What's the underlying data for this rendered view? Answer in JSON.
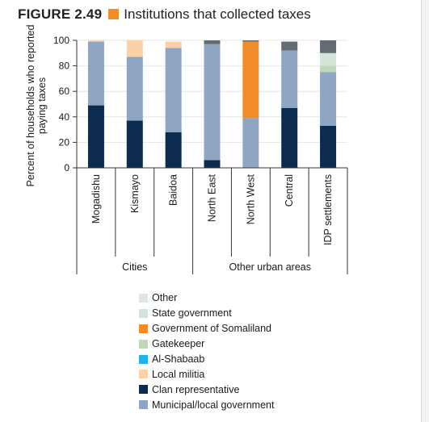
{
  "figure": {
    "number": "FIGURE 2.49",
    "title": "Institutions that collected taxes",
    "title_swatch_color": "#f28c28"
  },
  "chart_data": {
    "type": "bar",
    "stacked": true,
    "title": "Institutions that collected taxes",
    "ylabel": "Percent of households who reported paying taxes",
    "xlabel": "",
    "ylim": [
      0,
      100
    ],
    "yticks": [
      0,
      20,
      40,
      60,
      80,
      100
    ],
    "grid": false,
    "legend_position": "bottom",
    "categories": [
      "Mogadishu",
      "Kismayo",
      "Baidoa",
      "North East",
      "North West",
      "Central",
      "IDP settlements"
    ],
    "groups": [
      {
        "label": "Cities",
        "categories": [
          "Mogadishu",
          "Kismayo",
          "Baidoa"
        ]
      },
      {
        "label": "Other urban areas",
        "categories": [
          "North East",
          "North West",
          "Central",
          "IDP settlements"
        ]
      }
    ],
    "series": [
      {
        "name": "Clan representative",
        "color": "#0b2b4f",
        "values": [
          49,
          37,
          28,
          6,
          0,
          47,
          33
        ]
      },
      {
        "name": "Municipal/local government",
        "color": "#8ea5c3",
        "values": [
          50,
          50,
          66,
          91,
          39,
          45,
          42
        ]
      },
      {
        "name": "Local militia",
        "color": "#fcd1a9",
        "values": [
          1,
          13,
          5,
          0,
          0,
          0,
          0
        ]
      },
      {
        "name": "Al-Shabaab",
        "color": "#20b3e8",
        "values": [
          0,
          0,
          0,
          0,
          0,
          0,
          0
        ]
      },
      {
        "name": "Gatekeeper",
        "color": "#bdd7b8",
        "values": [
          0,
          0,
          0,
          0,
          0,
          0,
          5
        ]
      },
      {
        "name": "Government of Somaliland",
        "color": "#f28c28",
        "values": [
          0,
          0,
          0,
          0,
          60,
          0,
          0
        ]
      },
      {
        "name": "State government",
        "color": "#d4e3d7",
        "values": [
          0,
          0,
          0,
          0,
          0,
          0,
          10
        ]
      },
      {
        "name": "Other",
        "color": "#636b74",
        "values": [
          0,
          0,
          0,
          3,
          1,
          7,
          10
        ]
      }
    ]
  },
  "legend": [
    {
      "label": "Other",
      "color": "#dce9dc"
    },
    {
      "label": "State government",
      "color": "#d4e3d7"
    },
    {
      "label": "Government of Somaliland",
      "color": "#f28c28"
    },
    {
      "label": "Gatekeeper",
      "color": "#bdd7b8"
    },
    {
      "label": "Al-Shabaab",
      "color": "#20b3e8"
    },
    {
      "label": "Local militia",
      "color": "#fcd1a9"
    },
    {
      "label": "Clan representative",
      "color": "#0b2b4f"
    },
    {
      "label": "Municipal/local government",
      "color": "#8ea5c3"
    }
  ]
}
